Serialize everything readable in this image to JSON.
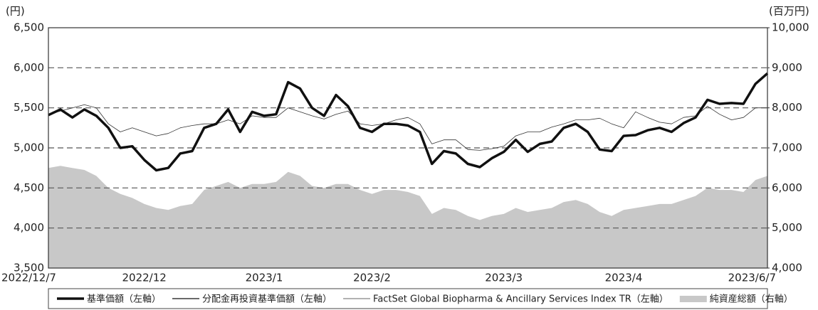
{
  "chart_data": {
    "type": "line",
    "y_unit": "(円)",
    "y2_unit": "(百万円)",
    "categories": [
      "2022/12/7",
      null,
      null,
      null,
      null,
      null,
      null,
      null,
      "2022/12",
      null,
      null,
      null,
      null,
      null,
      null,
      null,
      null,
      null,
      "2023/1",
      null,
      null,
      null,
      null,
      null,
      null,
      null,
      null,
      "2023/2",
      null,
      null,
      null,
      null,
      null,
      null,
      null,
      null,
      null,
      null,
      "2023/3",
      null,
      null,
      null,
      null,
      null,
      null,
      null,
      null,
      null,
      "2023/4",
      null,
      null,
      null,
      null,
      null,
      null,
      null,
      null,
      null,
      null,
      null,
      "2023/6/7"
    ],
    "ylim": [
      3500,
      6500
    ],
    "yticks": [
      {
        "value": 3500,
        "label": "3,500"
      },
      {
        "value": 4000,
        "label": "4,000"
      },
      {
        "value": 4500,
        "label": "4,500"
      },
      {
        "value": 5000,
        "label": "5,000"
      },
      {
        "value": 5500,
        "label": "5,500"
      },
      {
        "value": 6000,
        "label": "6,000"
      },
      {
        "value": 6500,
        "label": "6,500"
      }
    ],
    "y2lim": [
      4000,
      10000
    ],
    "y2ticks": [
      {
        "value": 4000,
        "label": "4,000"
      },
      {
        "value": 5000,
        "label": "5,000"
      },
      {
        "value": 6000,
        "label": "6,000"
      },
      {
        "value": 7000,
        "label": "7,000"
      },
      {
        "value": 8000,
        "label": "8,000"
      },
      {
        "value": 9000,
        "label": "9,000"
      },
      {
        "value": 10000,
        "label": "10,000"
      }
    ],
    "grid": true,
    "series": [
      {
        "name": "純資産総額（右軸）",
        "color": "#c8c8c8",
        "axis": "y2",
        "fill": true,
        "values": [
          6500,
          6550,
          6500,
          6450,
          6300,
          6000,
          5850,
          5750,
          5600,
          5500,
          5450,
          5550,
          5600,
          5950,
          6050,
          6150,
          6000,
          6100,
          6100,
          6150,
          6400,
          6300,
          6050,
          6000,
          6100,
          6100,
          5950,
          5850,
          5950,
          5950,
          5900,
          5800,
          5350,
          5500,
          5450,
          5300,
          5200,
          5300,
          5350,
          5500,
          5400,
          5450,
          5500,
          5650,
          5700,
          5600,
          5400,
          5300,
          5450,
          5500,
          5550,
          5600,
          5600,
          5700,
          5800,
          6000,
          5950,
          5950,
          5900,
          6200,
          6300
        ]
      },
      {
        "name": "FactSet Global Biopharma & Ancillary Services Index TR（左軸）",
        "color": "#333333",
        "line_width": 0.8,
        "values": [
          5420,
          5460,
          5500,
          5540,
          5500,
          5300,
          5200,
          5250,
          5200,
          5150,
          5180,
          5250,
          5280,
          5300,
          5300,
          5350,
          5300,
          5400,
          5380,
          5380,
          5500,
          5450,
          5400,
          5360,
          5420,
          5460,
          5300,
          5280,
          5300,
          5350,
          5380,
          5300,
          5050,
          5100,
          5100,
          4980,
          4970,
          4990,
          5020,
          5150,
          5200,
          5200,
          5260,
          5300,
          5350,
          5350,
          5370,
          5300,
          5250,
          5450,
          5380,
          5320,
          5300,
          5380,
          5400,
          5520,
          5420,
          5350,
          5380,
          5500,
          5500
        ]
      },
      {
        "name": "基準価額（左軸）",
        "color": "#111111",
        "line_width": 3.5,
        "values": [
          5410,
          5480,
          5380,
          5480,
          5400,
          5250,
          5000,
          5020,
          4850,
          4720,
          4750,
          4930,
          4960,
          5250,
          5300,
          5480,
          5200,
          5450,
          5400,
          5420,
          5820,
          5740,
          5500,
          5400,
          5660,
          5520,
          5250,
          5200,
          5300,
          5300,
          5280,
          5200,
          4800,
          4960,
          4930,
          4800,
          4760,
          4870,
          4950,
          5100,
          4950,
          5050,
          5080,
          5250,
          5300,
          5200,
          4980,
          4960,
          5150,
          5160,
          5220,
          5250,
          5200,
          5310,
          5380,
          5600,
          5550,
          5560,
          5550,
          5800,
          5930
        ]
      },
      {
        "name": "分配金再投資基準価額（左軸）",
        "color": "#111111",
        "line_width": 1.2,
        "values": [
          5410,
          5480,
          5380,
          5480,
          5400,
          5250,
          5000,
          5020,
          4850,
          4720,
          4750,
          4930,
          4960,
          5250,
          5300,
          5480,
          5200,
          5450,
          5400,
          5420,
          5820,
          5740,
          5500,
          5400,
          5660,
          5520,
          5250,
          5200,
          5300,
          5300,
          5280,
          5200,
          4800,
          4960,
          4930,
          4800,
          4760,
          4870,
          4950,
          5100,
          4950,
          5050,
          5080,
          5250,
          5300,
          5200,
          4980,
          4960,
          5150,
          5160,
          5220,
          5250,
          5200,
          5310,
          5380,
          5600,
          5550,
          5560,
          5550,
          5800,
          5930
        ]
      }
    ]
  }
}
